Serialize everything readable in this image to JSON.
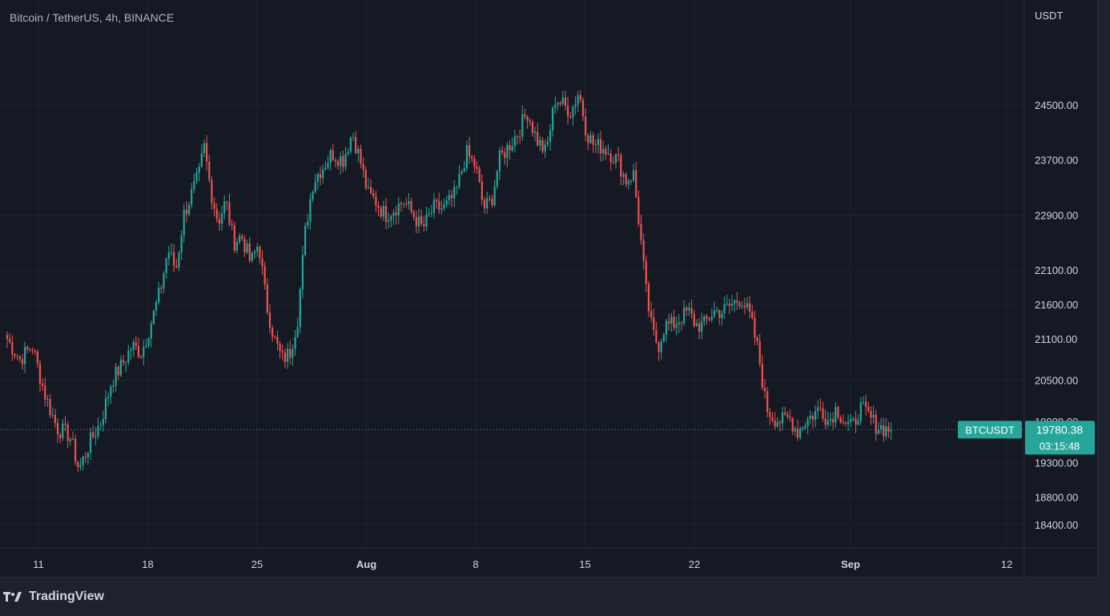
{
  "title": "Bitcoin / TetherUS, 4h, BINANCE",
  "brand": "TradingView",
  "colors": {
    "up": "#26a69a",
    "down": "#ef5350",
    "background": "#151924",
    "grid": "#1f2330",
    "axis_text": "#d1d4dc",
    "last_price_badge": "#26a69a"
  },
  "chart_data": {
    "type": "candlestick",
    "symbol": "BTCUSDT",
    "interval": "4h",
    "exchange": "BINANCE",
    "currency_label": "USDT",
    "y_tick_labels": [
      "24500.00",
      "23700.00",
      "22900.00",
      "22100.00",
      "21600.00",
      "21100.00",
      "20500.00",
      "19900.00",
      "19300.00",
      "18800.00",
      "18400.00"
    ],
    "ylim": [
      18200,
      25300
    ],
    "x_tick_labels": [
      {
        "label": "11",
        "day": 11
      },
      {
        "label": "18",
        "day": 18
      },
      {
        "label": "25",
        "day": 25
      },
      {
        "label": "Aug",
        "day": 32
      },
      {
        "label": "8",
        "day": 39
      },
      {
        "label": "15",
        "day": 46
      },
      {
        "label": "22",
        "day": 53
      },
      {
        "label": "Sep",
        "day": 63
      },
      {
        "label": "12",
        "day": 73
      }
    ],
    "x_range_days": [
      8.8,
      74.2
    ],
    "last_price": "19780.38",
    "last_price_value": 19780.38,
    "countdown": "03:15:48",
    "symbol_badge": "BTCUSDT",
    "closes": [
      [
        9.0,
        21100
      ],
      [
        9.8,
        20800
      ],
      [
        10.6,
        21000
      ],
      [
        11.4,
        20300
      ],
      [
        12.2,
        19800
      ],
      [
        13.0,
        19700
      ],
      [
        13.6,
        19200
      ],
      [
        14.3,
        19600
      ],
      [
        15.0,
        19900
      ],
      [
        15.7,
        20500
      ],
      [
        16.3,
        20700
      ],
      [
        17.0,
        21000
      ],
      [
        17.6,
        20900
      ],
      [
        18.3,
        21400
      ],
      [
        18.8,
        21800
      ],
      [
        19.3,
        22400
      ],
      [
        19.8,
        22100
      ],
      [
        20.3,
        22900
      ],
      [
        20.8,
        23200
      ],
      [
        21.3,
        23500
      ],
      [
        21.6,
        23900
      ],
      [
        22.0,
        23300
      ],
      [
        22.5,
        22800
      ],
      [
        23.0,
        23100
      ],
      [
        23.5,
        22500
      ],
      [
        24.0,
        22600
      ],
      [
        24.6,
        22200
      ],
      [
        25.1,
        22500
      ],
      [
        25.6,
        21600
      ],
      [
        26.1,
        21100
      ],
      [
        26.6,
        20800
      ],
      [
        27.1,
        20900
      ],
      [
        27.6,
        21400
      ],
      [
        28.1,
        22700
      ],
      [
        28.6,
        23400
      ],
      [
        29.2,
        23600
      ],
      [
        29.8,
        23800
      ],
      [
        30.5,
        23700
      ],
      [
        31.1,
        24100
      ],
      [
        31.6,
        23700
      ],
      [
        32.1,
        23200
      ],
      [
        32.6,
        23100
      ],
      [
        33.2,
        22900
      ],
      [
        33.8,
        23000
      ],
      [
        34.4,
        23100
      ],
      [
        35.0,
        22900
      ],
      [
        35.6,
        22700
      ],
      [
        36.3,
        23000
      ],
      [
        37.0,
        23000
      ],
      [
        37.7,
        23200
      ],
      [
        38.4,
        23800
      ],
      [
        39.0,
        23600
      ],
      [
        39.5,
        23000
      ],
      [
        40.0,
        23100
      ],
      [
        40.5,
        23700
      ],
      [
        41.1,
        23900
      ],
      [
        41.7,
        24100
      ],
      [
        42.3,
        24400
      ],
      [
        42.9,
        24000
      ],
      [
        43.5,
        23800
      ],
      [
        44.1,
        24600
      ],
      [
        44.6,
        24500
      ],
      [
        45.1,
        24400
      ],
      [
        45.6,
        24700
      ],
      [
        46.1,
        24100
      ],
      [
        46.6,
        23900
      ],
      [
        47.1,
        23900
      ],
      [
        47.6,
        23800
      ],
      [
        48.1,
        23700
      ],
      [
        48.6,
        23400
      ],
      [
        49.1,
        23500
      ],
      [
        49.5,
        22700
      ],
      [
        49.9,
        21800
      ],
      [
        50.3,
        21200
      ],
      [
        50.7,
        21000
      ],
      [
        51.1,
        21300
      ],
      [
        51.6,
        21300
      ],
      [
        52.1,
        21400
      ],
      [
        52.6,
        21500
      ],
      [
        53.1,
        21300
      ],
      [
        53.6,
        21300
      ],
      [
        54.2,
        21500
      ],
      [
        54.8,
        21500
      ],
      [
        55.4,
        21600
      ],
      [
        56.0,
        21700
      ],
      [
        56.6,
        21400
      ],
      [
        57.1,
        20900
      ],
      [
        57.6,
        20100
      ],
      [
        58.1,
        19950
      ],
      [
        58.6,
        19900
      ],
      [
        59.1,
        19950
      ],
      [
        59.6,
        19750
      ],
      [
        60.1,
        19900
      ],
      [
        60.6,
        20000
      ],
      [
        61.1,
        20100
      ],
      [
        61.6,
        19900
      ],
      [
        62.1,
        20100
      ],
      [
        62.6,
        19900
      ],
      [
        63.1,
        19800
      ],
      [
        63.6,
        20100
      ],
      [
        64.1,
        20000
      ],
      [
        64.6,
        19850
      ],
      [
        65.1,
        19800
      ],
      [
        65.6,
        19780
      ]
    ]
  }
}
